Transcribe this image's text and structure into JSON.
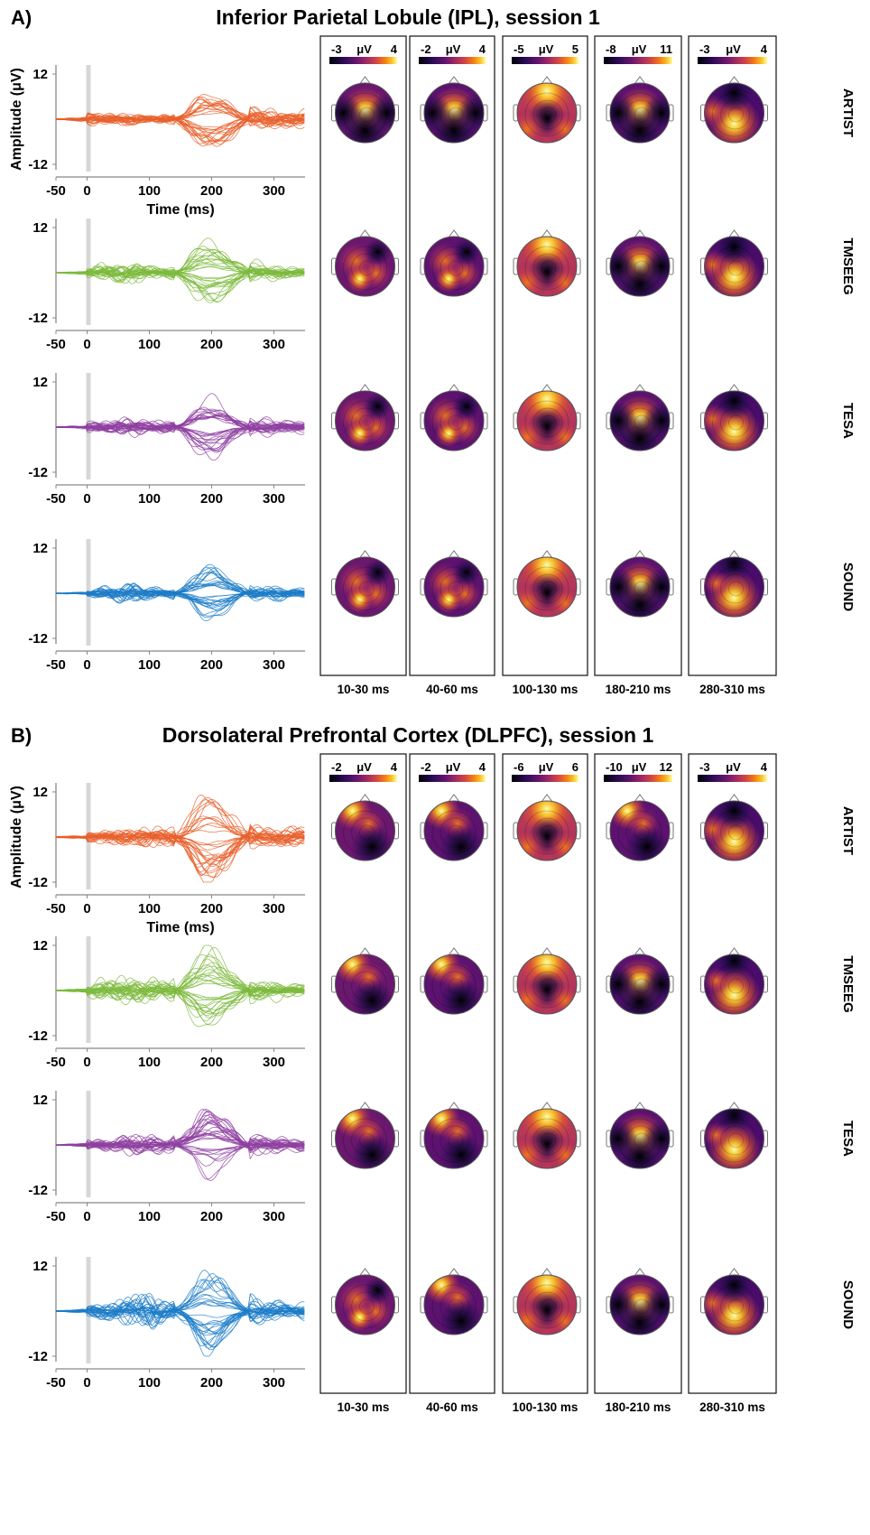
{
  "chart_data": [
    {
      "panel": "A)",
      "title": "Inferior Parietal Lobule (IPL), session 1",
      "type": "line",
      "xlabel": "Time (ms)",
      "ylabel": "Amplitude (μV)",
      "xlim": [
        -50,
        350
      ],
      "ylim": [
        -12,
        12
      ],
      "x_ticks": [
        "-50",
        "0",
        "100",
        "200",
        "300"
      ],
      "y_ticks": [
        "12",
        "-12"
      ],
      "time_windows": [
        "10-30 ms",
        "40-60 ms",
        "100-130 ms",
        "180-210 ms",
        "280-310 ms"
      ],
      "colorbar_unit": "μV",
      "colorbar_ranges": [
        {
          "min": "-3",
          "max": "4"
        },
        {
          "min": "-2",
          "max": "4"
        },
        {
          "min": "-5",
          "max": "5"
        },
        {
          "min": "-8",
          "max": "11"
        },
        {
          "min": "-3",
          "max": "4"
        }
      ],
      "rows": [
        {
          "name": "ARTIST",
          "color": "#E8602C",
          "env": [
            0.8,
            2.8,
            2.2,
            2.3,
            1.4,
            2.0,
            8.5,
            3.0,
            2.6
          ]
        },
        {
          "name": "TMSEEG",
          "color": "#7DBA3C",
          "env": [
            0.6,
            1.7,
            3.5,
            3.6,
            2.4,
            2.1,
            8.2,
            2.5,
            1.6
          ]
        },
        {
          "name": "TESA",
          "color": "#8E3FA0",
          "env": [
            0.6,
            1.9,
            2.2,
            3.4,
            2.4,
            2.1,
            7.5,
            2.4,
            1.6
          ]
        },
        {
          "name": "SOUND",
          "color": "#1C7CC8",
          "env": [
            0.5,
            1.2,
            2.6,
            3.5,
            2.2,
            1.8,
            6.5,
            2.3,
            1.4
          ]
        }
      ]
    },
    {
      "panel": "B)",
      "title": "Dorsolateral Prefrontal Cortex (DLPFC), session 1",
      "type": "line",
      "xlabel": "Time (ms)",
      "ylabel": "Amplitude (μV)",
      "xlim": [
        -50,
        350
      ],
      "ylim": [
        -12,
        12
      ],
      "x_ticks": [
        "-50",
        "0",
        "100",
        "200",
        "300"
      ],
      "y_ticks": [
        "12",
        "-12"
      ],
      "time_windows": [
        "10-30 ms",
        "40-60 ms",
        "100-130 ms",
        "180-210 ms",
        "280-310 ms"
      ],
      "colorbar_unit": "μV",
      "colorbar_ranges": [
        {
          "min": "-2",
          "max": "4"
        },
        {
          "min": "-2",
          "max": "4"
        },
        {
          "min": "-6",
          "max": "6"
        },
        {
          "min": "-10",
          "max": "12"
        },
        {
          "min": "-3",
          "max": "4"
        }
      ],
      "rows": [
        {
          "name": "ARTIST",
          "color": "#E8602C",
          "env": [
            0.8,
            2.0,
            2.2,
            3.0,
            3.8,
            3.0,
            11.5,
            3.0,
            2.4
          ]
        },
        {
          "name": "TMSEEG",
          "color": "#7DBA3C",
          "env": [
            0.7,
            2.5,
            4.5,
            5.0,
            4.5,
            4.0,
            11.0,
            3.0,
            2.0
          ]
        },
        {
          "name": "TESA",
          "color": "#8E3FA0",
          "env": [
            0.5,
            1.8,
            2.0,
            3.4,
            3.4,
            2.8,
            8.5,
            2.4,
            1.8
          ]
        },
        {
          "name": "SOUND",
          "color": "#1C7CC8",
          "env": [
            0.8,
            2.0,
            3.5,
            5.5,
            6.5,
            4.0,
            10.5,
            3.2,
            2.6
          ]
        }
      ]
    }
  ]
}
